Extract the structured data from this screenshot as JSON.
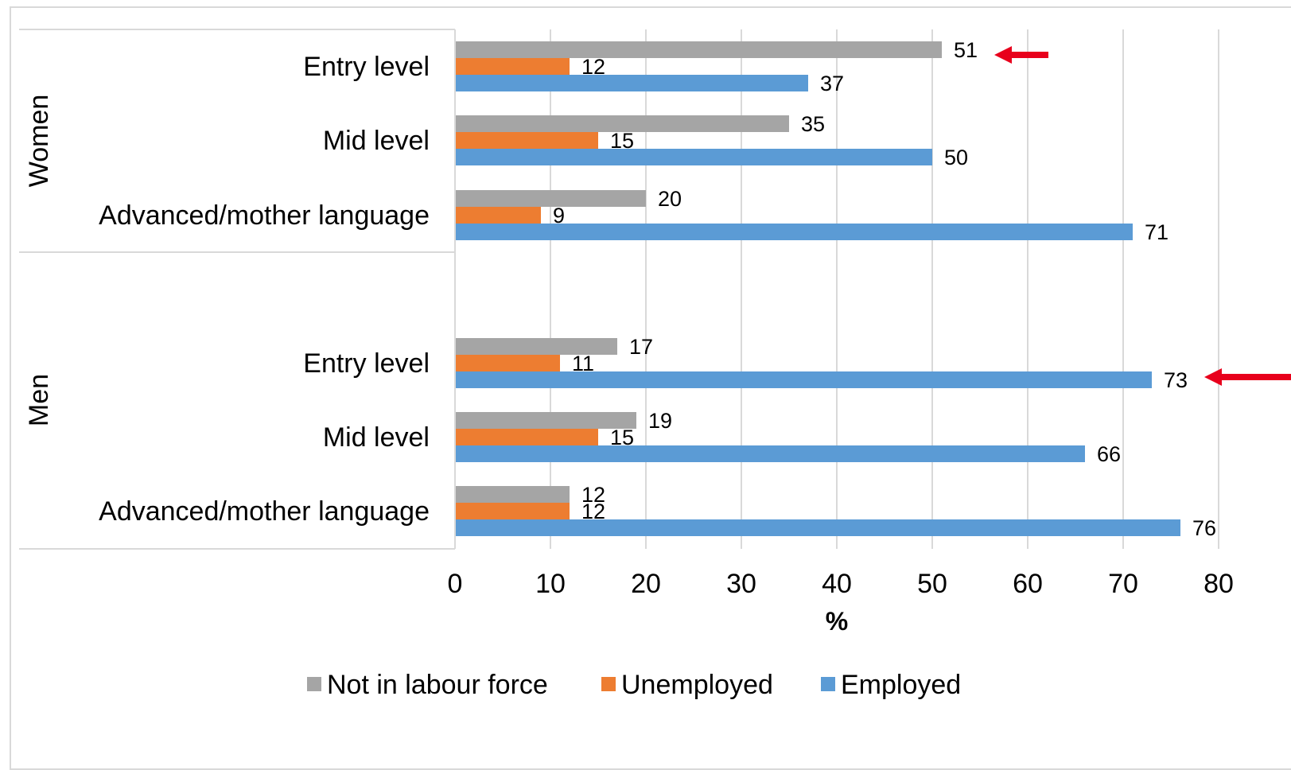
{
  "chart_data": {
    "type": "bar",
    "orientation": "horizontal",
    "groups": [
      {
        "name": "Women",
        "categories": [
          "Entry level",
          "Mid level",
          "Advanced/mother language"
        ]
      },
      {
        "name": "Men",
        "categories": [
          "Entry level",
          "Mid level",
          "Advanced/mother language"
        ]
      }
    ],
    "series": [
      {
        "name": "Not in labour force",
        "color": "#a5a5a5",
        "values": [
          [
            51,
            35,
            20
          ],
          [
            17,
            19,
            12
          ]
        ]
      },
      {
        "name": "Unemployed",
        "color": "#ed7d31",
        "values": [
          [
            12,
            15,
            9
          ],
          [
            11,
            15,
            12
          ]
        ]
      },
      {
        "name": "Employed",
        "color": "#5b9bd5",
        "values": [
          [
            37,
            50,
            71
          ],
          [
            73,
            66,
            76
          ]
        ]
      }
    ],
    "xlabel": "%",
    "xlim": [
      0,
      80
    ],
    "xticks": [
      "0",
      "10",
      "20",
      "30",
      "40",
      "50",
      "60",
      "70",
      "80"
    ],
    "gridlines": "vertical",
    "legend": "bottom",
    "annotations": [
      {
        "type": "arrow",
        "color": "#e8001c",
        "points_to": "Women / Entry level / Not in labour force"
      },
      {
        "type": "arrow",
        "color": "#e8001c",
        "points_to": "Men / Entry level / Employed"
      }
    ]
  }
}
